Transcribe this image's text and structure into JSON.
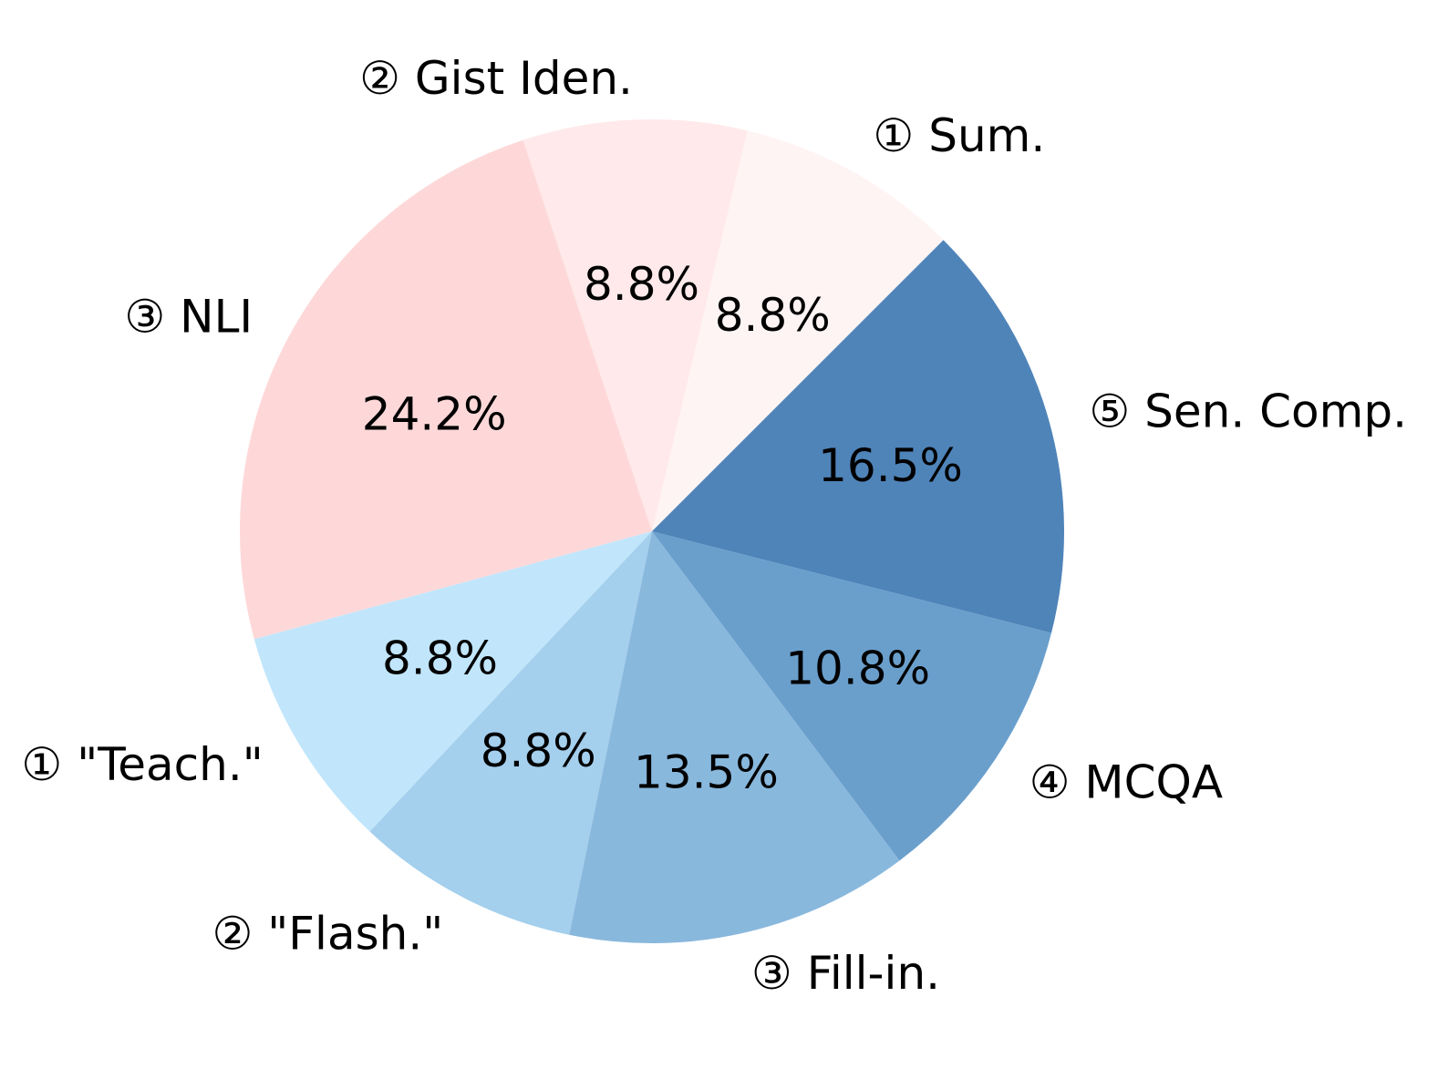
{
  "chart_data": {
    "type": "pie",
    "title": "",
    "start_angle_deg": 45,
    "direction": "counterclockwise",
    "slices": [
      {
        "label": "① Sum.",
        "value": 8.8,
        "pct_label": "8.8%",
        "color": "#fff4f4"
      },
      {
        "label": "② Gist Iden.",
        "value": 8.8,
        "pct_label": "8.8%",
        "color": "#ffe9ea"
      },
      {
        "label": "③ NLI",
        "value": 24.2,
        "pct_label": "24.2%",
        "color": "#fed8d9"
      },
      {
        "label": "① \"Teach.\"",
        "value": 8.8,
        "pct_label": "8.8%",
        "color": "#c1e6fb"
      },
      {
        "label": "② \"Flash.\"",
        "value": 8.8,
        "pct_label": "8.8%",
        "color": "#a4cfed"
      },
      {
        "label": "③ Fill-in.",
        "value": 13.5,
        "pct_label": "13.5%",
        "color": "#89b8dd"
      },
      {
        "label": "④ MCQA",
        "value": 10.8,
        "pct_label": "10.8%",
        "color": "#6a9fcc"
      },
      {
        "label": "⑤ Sen. Comp.",
        "value": 16.5,
        "pct_label": "16.5%",
        "color": "#4f84b9"
      }
    ]
  }
}
